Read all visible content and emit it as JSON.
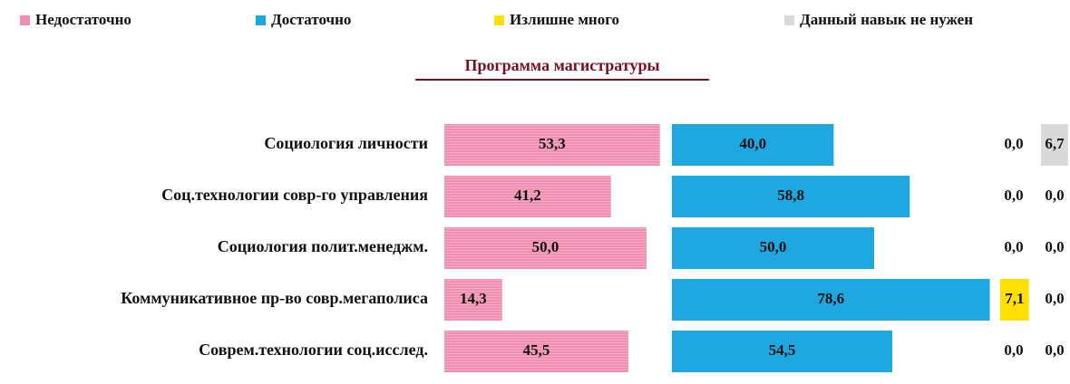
{
  "chart_data": {
    "type": "bar",
    "orientation": "horizontal",
    "subtitle": "Программа магистратуры",
    "categories": [
      "Социология личности",
      "Соц.технологии совр-го управления",
      "Социология полит.менеджм.",
      "Коммуникативное пр-во совр.мегаполиса",
      "Соврем.технологии соц.исслед."
    ],
    "series": [
      {
        "name": "Недостаточно",
        "color": "#f08fb2",
        "values": [
          53.3,
          41.2,
          50.0,
          14.3,
          45.5
        ],
        "value_labels": [
          "53,3",
          "41,2",
          "50,0",
          "14,3",
          "45,5"
        ]
      },
      {
        "name": "Достаточно",
        "color": "#1fa8e0",
        "values": [
          40.0,
          58.8,
          50.0,
          78.6,
          54.5
        ],
        "value_labels": [
          "40,0",
          "58,8",
          "50,0",
          "78,6",
          "54,5"
        ]
      },
      {
        "name": "Излишне много",
        "color": "#ffe000",
        "values": [
          0.0,
          0.0,
          0.0,
          7.1,
          0.0
        ],
        "value_labels": [
          "0,0",
          "0,0",
          "0,0",
          "7,1",
          "0,0"
        ]
      },
      {
        "name": "Данный навык не нужен",
        "color": "#d9d9d9",
        "values": [
          6.7,
          0.0,
          0.0,
          0.0,
          0.0
        ],
        "value_labels": [
          "6,7",
          "0,0",
          "0,0",
          "0,0",
          "0,0"
        ]
      }
    ]
  }
}
